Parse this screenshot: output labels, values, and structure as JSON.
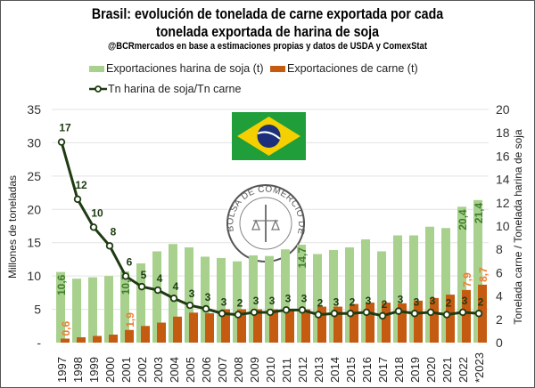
{
  "chart_data": {
    "type": "bar+line",
    "title": "Brasil: evolución de tonelada de carne exportada por cada tonelada exportada de harina de soja",
    "subtitle": "@BCRmercados en base a estimaciones propias y datos de USDA y ComexStat",
    "ylabel_left": "Millones de toneladas",
    "ylabel_right": "Tonelada carne / Tonelada harina de soja",
    "ylim_left": [
      0,
      35
    ],
    "ylim_right": [
      0,
      20
    ],
    "left_ticks": [
      "-",
      "5",
      "10",
      "15",
      "20",
      "25",
      "30",
      "35"
    ],
    "right_ticks": [
      "0",
      "2",
      "4",
      "6",
      "8",
      "10",
      "12",
      "14",
      "16",
      "18",
      "20"
    ],
    "grid": true,
    "legend_position": "top",
    "categories": [
      "1997",
      "1998",
      "1999",
      "2000",
      "2001",
      "2002",
      "2003",
      "2004",
      "2005",
      "2006",
      "2007",
      "2008",
      "2009",
      "2010",
      "2011",
      "2012",
      "2013",
      "2014",
      "2015",
      "2016",
      "2017",
      "2018",
      "2019",
      "2020",
      "2021",
      "2022",
      "*2023"
    ],
    "series": [
      {
        "name": "Exportaciones harina de soja (t)",
        "type": "bar",
        "axis": "left",
        "color": "#a9d18e",
        "values": [
          10.6,
          9.6,
          9.8,
          10.0,
          10.7,
          11.9,
          13.7,
          14.8,
          14.3,
          12.9,
          12.7,
          12.2,
          13.1,
          13.0,
          14.0,
          14.7,
          13.3,
          13.9,
          14.3,
          15.5,
          13.7,
          16.1,
          16.1,
          17.4,
          17.2,
          20.4,
          21.4
        ],
        "data_labels": {
          "0": "10,6",
          "4": "10,7",
          "15": "14,7",
          "25": "20,4",
          "26": "21,4"
        }
      },
      {
        "name": "Exportaciones de carne (t)",
        "type": "bar",
        "axis": "left",
        "color": "#c55a11",
        "values": [
          0.6,
          0.8,
          1.0,
          1.2,
          1.9,
          2.5,
          3.0,
          3.9,
          4.5,
          4.4,
          5.0,
          5.0,
          5.0,
          5.0,
          5.0,
          5.0,
          5.4,
          5.4,
          5.8,
          6.0,
          6.0,
          5.9,
          6.3,
          6.7,
          7.2,
          7.9,
          8.7
        ],
        "data_labels": {
          "0": "0,6",
          "4": "1,9",
          "25": "7,9",
          "26": "8,7"
        }
      },
      {
        "name": "Tn harina de soja/Tn carne",
        "type": "line",
        "axis": "right",
        "color": "#1e3b12",
        "values": [
          17.2,
          12.3,
          9.9,
          8.3,
          5.7,
          4.8,
          4.5,
          3.8,
          3.2,
          2.9,
          2.5,
          2.4,
          2.6,
          2.6,
          2.8,
          2.8,
          2.4,
          2.5,
          2.5,
          2.6,
          2.3,
          2.7,
          2.5,
          2.6,
          2.4,
          2.6,
          2.5
        ],
        "data_labels": [
          "17",
          "12",
          "10",
          "8",
          "6",
          "5",
          "4",
          "4",
          "3",
          "3",
          "3",
          "2",
          "3",
          "3",
          "3",
          "3",
          "2",
          "3",
          "2",
          "3",
          "2",
          "3",
          "3",
          "3",
          "2",
          "3",
          "2"
        ]
      }
    ]
  },
  "logo": {
    "text": "BOLSA DE COMERCIO DE ROSARIO"
  }
}
